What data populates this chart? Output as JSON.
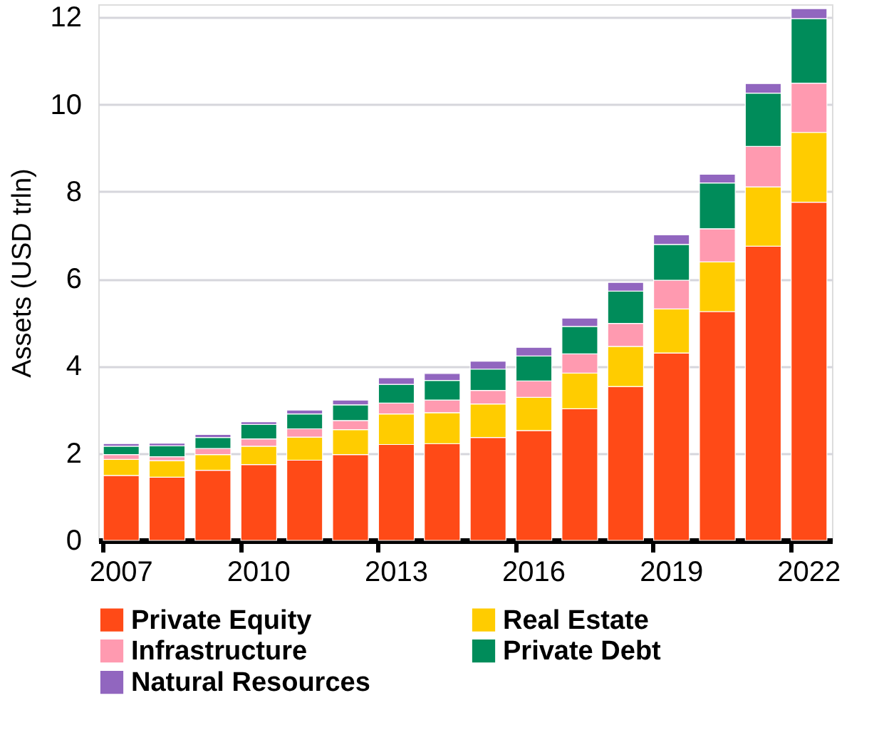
{
  "chart_data": {
    "type": "bar",
    "stacked": true,
    "ylabel": "Assets (USD trln)",
    "categories": [
      "2007",
      null,
      null,
      "2010",
      null,
      null,
      "2013",
      null,
      null,
      "2016",
      null,
      null,
      "2019",
      null,
      null,
      "2022"
    ],
    "ylim": [
      0,
      12.3
    ],
    "yticks": [
      0,
      2,
      4,
      6,
      8,
      10,
      12
    ],
    "grid": "y",
    "legend": "bottom",
    "series": [
      {
        "name": "Private Equity",
        "color": "#ff4a17",
        "values": [
          1.49,
          1.45,
          1.61,
          1.74,
          1.84,
          1.97,
          2.2,
          2.22,
          2.36,
          2.52,
          3.02,
          3.53,
          4.3,
          5.25,
          6.75,
          7.76
        ]
      },
      {
        "name": "Real Estate",
        "color": "#ffcc00",
        "values": [
          0.37,
          0.38,
          0.36,
          0.42,
          0.53,
          0.57,
          0.7,
          0.71,
          0.77,
          0.76,
          0.82,
          0.92,
          1.01,
          1.14,
          1.36,
          1.6
        ]
      },
      {
        "name": "Infrastructure",
        "color": "#ff9ab0",
        "values": [
          0.11,
          0.09,
          0.14,
          0.17,
          0.19,
          0.21,
          0.25,
          0.29,
          0.31,
          0.38,
          0.44,
          0.53,
          0.66,
          0.76,
          0.93,
          1.13
        ]
      },
      {
        "name": "Private Debt",
        "color": "#008c5a",
        "values": [
          0.19,
          0.25,
          0.25,
          0.33,
          0.34,
          0.36,
          0.43,
          0.45,
          0.49,
          0.57,
          0.63,
          0.74,
          0.82,
          1.05,
          1.22,
          1.48
        ]
      },
      {
        "name": "Natural Resources",
        "color": "#9166bf",
        "values": [
          0.06,
          0.06,
          0.07,
          0.06,
          0.09,
          0.11,
          0.15,
          0.16,
          0.18,
          0.2,
          0.19,
          0.2,
          0.22,
          0.2,
          0.22,
          0.23
        ]
      }
    ]
  }
}
